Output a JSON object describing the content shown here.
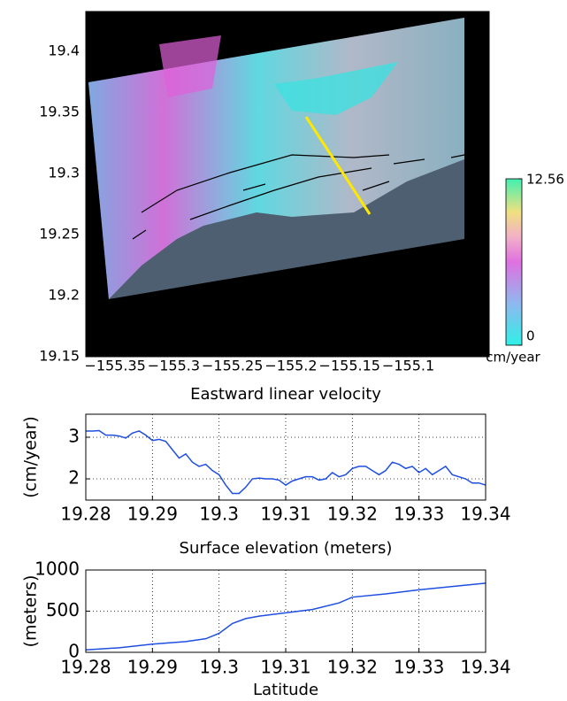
{
  "chart_data": [
    {
      "type": "image",
      "xlim": [
        -155.375,
        -155.031
      ],
      "ylim": [
        19.15,
        19.4326
      ],
      "xticks": [
        {
          "value": -155.35,
          "label": "−155.35"
        },
        {
          "value": -155.3,
          "label": "−155.3"
        },
        {
          "value": -155.25,
          "label": "−155.25"
        },
        {
          "value": -155.2,
          "label": "−155.2"
        },
        {
          "value": -155.15,
          "label": "−155.15"
        },
        {
          "value": -155.1,
          "label": "−155.1"
        }
      ],
      "yticks": [
        19.15,
        19.2,
        19.25,
        19.3,
        19.35,
        19.4
      ],
      "colorbar": {
        "lim": [
          0,
          12.56
        ],
        "ticks": [
          0,
          12.56
        ],
        "label": "cm/year"
      }
    },
    {
      "type": "line",
      "title": "Eastward linear velocity",
      "ylabel": "(cm/year)",
      "grid": true,
      "xlim": [
        19.28,
        19.34
      ],
      "ylim": [
        1.49,
        3.553
      ],
      "xticks": [
        19.28,
        19.29,
        19.3,
        19.31,
        19.32,
        19.33,
        19.34
      ],
      "yticks": [
        2,
        3
      ],
      "x": [
        19.28,
        19.281,
        19.282,
        19.283,
        19.284,
        19.285,
        19.286,
        19.287,
        19.288,
        19.289,
        19.29,
        19.291,
        19.292,
        19.293,
        19.294,
        19.295,
        19.296,
        19.297,
        19.298,
        19.299,
        19.3,
        19.301,
        19.302,
        19.303,
        19.304,
        19.305,
        19.306,
        19.307,
        19.308,
        19.309,
        19.31,
        19.311,
        19.312,
        19.313,
        19.314,
        19.315,
        19.316,
        19.317,
        19.318,
        19.319,
        19.32,
        19.321,
        19.322,
        19.323,
        19.324,
        19.325,
        19.326,
        19.327,
        19.328,
        19.329,
        19.33,
        19.331,
        19.332,
        19.333,
        19.334,
        19.335,
        19.336,
        19.337,
        19.338,
        19.339,
        19.34
      ],
      "series": [
        {
          "color": "#1f4fe0",
          "values": [
            3.15,
            3.15,
            3.16,
            3.05,
            3.05,
            3.03,
            2.98,
            3.1,
            3.15,
            3.05,
            2.92,
            2.95,
            2.9,
            2.7,
            2.5,
            2.6,
            2.4,
            2.3,
            2.35,
            2.2,
            2.1,
            1.85,
            1.65,
            1.65,
            1.8,
            2.0,
            2.02,
            2.0,
            2.0,
            1.97,
            1.85,
            1.95,
            2.0,
            2.05,
            2.05,
            1.97,
            2.0,
            2.15,
            2.05,
            2.1,
            2.25,
            2.3,
            2.3,
            2.2,
            2.1,
            2.2,
            2.4,
            2.35,
            2.25,
            2.3,
            2.15,
            2.25,
            2.1,
            2.2,
            2.3,
            2.1,
            2.05,
            2.0,
            1.9,
            1.9,
            1.85
          ]
        }
      ]
    },
    {
      "type": "line",
      "title": "Surface elevation (meters)",
      "ylabel": "(meters)",
      "xlabel": "Latitude",
      "grid": true,
      "xlim": [
        19.28,
        19.34
      ],
      "ylim": [
        0,
        1000
      ],
      "xticks": [
        19.28,
        19.29,
        19.3,
        19.31,
        19.32,
        19.33,
        19.34
      ],
      "yticks": [
        0,
        500,
        1000
      ],
      "x": [
        19.28,
        19.285,
        19.29,
        19.295,
        19.298,
        19.3,
        19.302,
        19.304,
        19.306,
        19.31,
        19.314,
        19.318,
        19.32,
        19.325,
        19.33,
        19.335,
        19.34
      ],
      "series": [
        {
          "color": "#1f4fe0",
          "values": [
            30,
            55,
            100,
            130,
            165,
            230,
            350,
            410,
            440,
            480,
            520,
            600,
            670,
            710,
            760,
            800,
            840
          ]
        }
      ]
    }
  ]
}
